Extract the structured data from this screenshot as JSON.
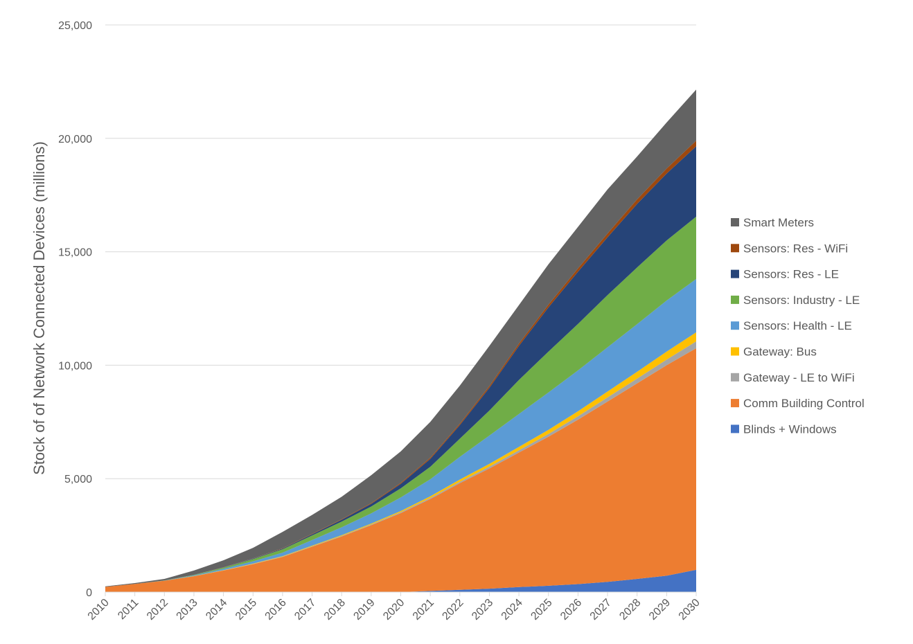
{
  "chart_data": {
    "type": "area",
    "stacked": true,
    "title": "",
    "xlabel": "",
    "ylabel": "Stock of of Network Connected Devices (millions)",
    "ylim": [
      0,
      25000
    ],
    "yticks": [
      0,
      5000,
      10000,
      15000,
      20000,
      25000
    ],
    "ytick_labels": [
      "0",
      "5,000",
      "10,000",
      "15,000",
      "20,000",
      "25,000"
    ],
    "grid": true,
    "legend_position": "right",
    "x": [
      "2010",
      "2011",
      "2012",
      "2013",
      "2014",
      "2015",
      "2016",
      "2017",
      "2018",
      "2019",
      "2020",
      "2021",
      "2022",
      "2023",
      "2024",
      "2025",
      "2026",
      "2027",
      "2028",
      "2029",
      "2030"
    ],
    "series": [
      {
        "name": "Blinds + Windows",
        "color": "#4472C4",
        "values": [
          0,
          0,
          0,
          0,
          0,
          0,
          0,
          0,
          0,
          0,
          0,
          50,
          100,
          150,
          220,
          280,
          350,
          450,
          580,
          720,
          980
        ]
      },
      {
        "name": "Comm Building Control",
        "color": "#ED7D31",
        "values": [
          230,
          360,
          500,
          700,
          950,
          1230,
          1550,
          2000,
          2450,
          2950,
          3480,
          4050,
          4700,
          5300,
          5930,
          6570,
          7250,
          7950,
          8620,
          9280,
          9770
        ]
      },
      {
        "name": "Gateway - LE to WiFi",
        "color": "#A5A5A5",
        "values": [
          0,
          0,
          0,
          0,
          5,
          10,
          15,
          20,
          25,
          30,
          40,
          50,
          60,
          80,
          100,
          120,
          150,
          180,
          210,
          250,
          300
        ]
      },
      {
        "name": "Gateway: Bus",
        "color": "#FFC000",
        "values": [
          0,
          0,
          0,
          5,
          10,
          15,
          20,
          25,
          30,
          40,
          50,
          70,
          100,
          120,
          150,
          180,
          220,
          260,
          300,
          350,
          400
        ]
      },
      {
        "name": "Sensors: Health - LE",
        "color": "#5B9BD5",
        "values": [
          0,
          0,
          5,
          30,
          60,
          100,
          150,
          250,
          350,
          450,
          600,
          750,
          1000,
          1250,
          1450,
          1650,
          1800,
          1950,
          2100,
          2250,
          2350
        ]
      },
      {
        "name": "Sensors: Industry - LE",
        "color": "#70AD47",
        "values": [
          0,
          0,
          5,
          20,
          50,
          100,
          150,
          200,
          250,
          300,
          400,
          550,
          800,
          1100,
          1500,
          1800,
          2050,
          2300,
          2500,
          2650,
          2750
        ]
      },
      {
        "name": "Sensors: Res - LE",
        "color": "#264478",
        "values": [
          0,
          0,
          0,
          5,
          10,
          20,
          30,
          50,
          80,
          120,
          200,
          350,
          600,
          1000,
          1500,
          1950,
          2300,
          2550,
          2800,
          2950,
          3100
        ]
      },
      {
        "name": "Sensors: Res - WiFi",
        "color": "#9E480E",
        "values": [
          0,
          0,
          0,
          0,
          5,
          10,
          15,
          20,
          25,
          30,
          40,
          50,
          60,
          80,
          100,
          120,
          150,
          170,
          200,
          220,
          250
        ]
      },
      {
        "name": "Smart Meters",
        "color": "#636363",
        "values": [
          20,
          35,
          70,
          190,
          310,
          465,
          720,
          835,
          990,
          1230,
          1390,
          1580,
          1680,
          1770,
          1700,
          1780,
          1830,
          1940,
          1890,
          2030,
          2250
        ]
      }
    ]
  }
}
